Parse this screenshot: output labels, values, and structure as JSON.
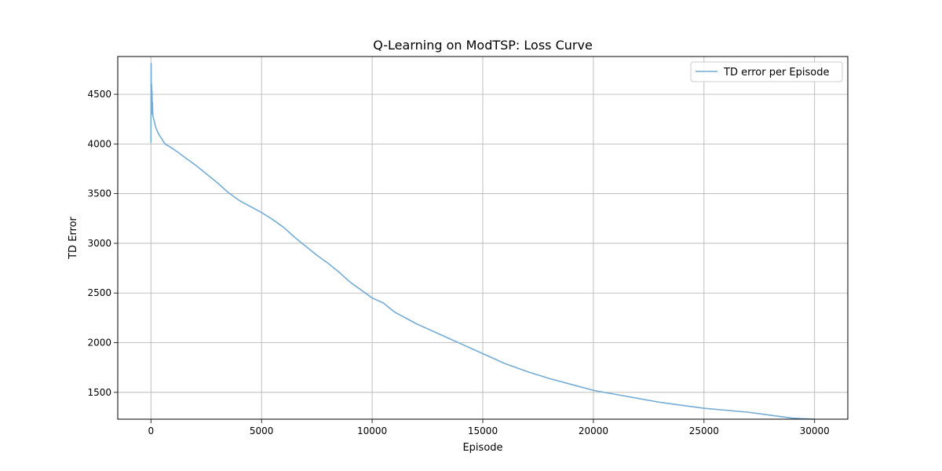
{
  "chart_data": {
    "type": "line",
    "title": "Q-Learning on ModTSP: Loss Curve",
    "xlabel": "Episode",
    "ylabel": "TD Error",
    "xlim": [
      -1500,
      31500
    ],
    "ylim": [
      1230,
      4880
    ],
    "xticks": [
      0,
      5000,
      10000,
      15000,
      20000,
      25000,
      30000
    ],
    "yticks": [
      1500,
      2000,
      2500,
      3000,
      3500,
      4000,
      4500
    ],
    "grid": true,
    "legend_position": "top-right",
    "series": [
      {
        "name": "TD error per Episode",
        "color": "#74acd6",
        "x": [
          0,
          10,
          20,
          30,
          40,
          50,
          60,
          70,
          80,
          100,
          150,
          200,
          300,
          400,
          500,
          600,
          700,
          800,
          1000,
          1200,
          1500,
          2000,
          2500,
          3000,
          3500,
          4000,
          4500,
          5000,
          5500,
          6000,
          6500,
          7000,
          7500,
          8000,
          8500,
          9000,
          9500,
          10000,
          10500,
          11000,
          11500,
          12000,
          12500,
          13000,
          13500,
          14000,
          14500,
          15000,
          15500,
          16000,
          17000,
          18000,
          19000,
          20000,
          21000,
          22000,
          23000,
          24000,
          25000,
          26000,
          27000,
          28000,
          29000,
          30000
        ],
        "y": [
          4010,
          4810,
          4400,
          4600,
          4500,
          4530,
          4300,
          4420,
          4320,
          4270,
          4230,
          4180,
          4120,
          4080,
          4050,
          4010,
          3990,
          3980,
          3950,
          3920,
          3870,
          3790,
          3700,
          3610,
          3510,
          3430,
          3370,
          3310,
          3240,
          3160,
          3060,
          2970,
          2880,
          2800,
          2710,
          2610,
          2530,
          2450,
          2400,
          2310,
          2250,
          2190,
          2140,
          2090,
          2040,
          1990,
          1940,
          1890,
          1840,
          1790,
          1710,
          1640,
          1580,
          1520,
          1480,
          1440,
          1400,
          1370,
          1340,
          1320,
          1300,
          1270,
          1240,
          1230
        ]
      }
    ]
  }
}
